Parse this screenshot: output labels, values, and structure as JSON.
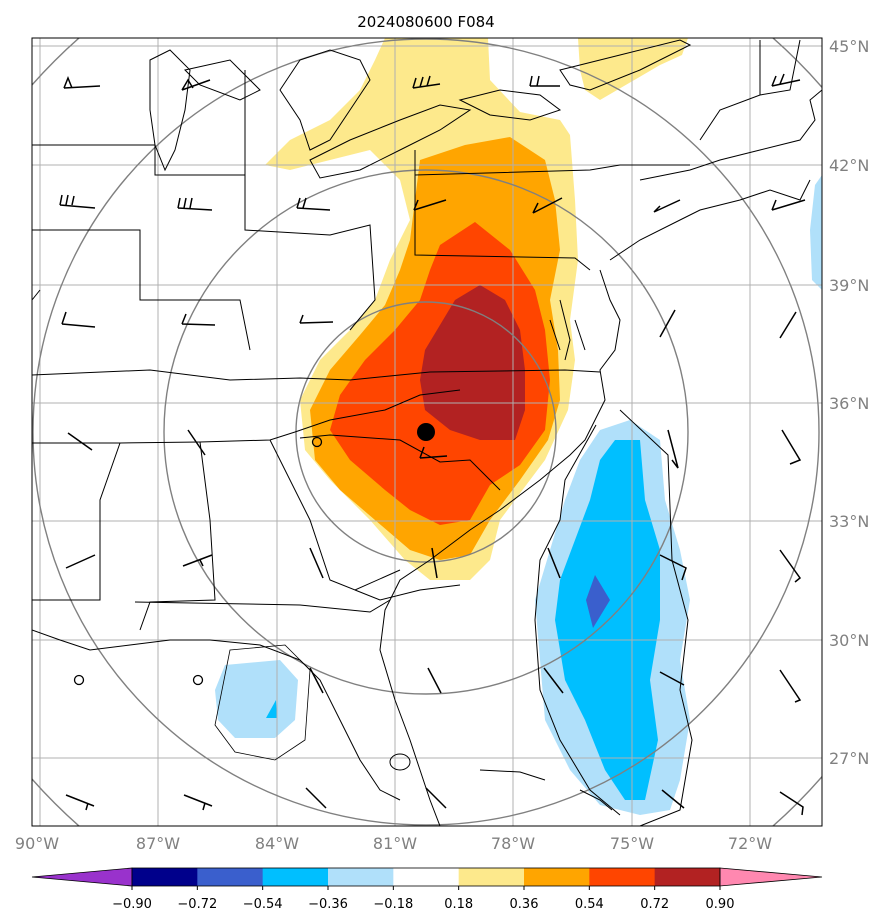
{
  "title": "2024080600 F084",
  "latitude_labels": [
    "45°N",
    "42°N",
    "39°N",
    "36°N",
    "33°N",
    "30°N",
    "27°N"
  ],
  "longitude_labels": [
    "90°W",
    "87°W",
    "84°W",
    "81°W",
    "78°W",
    "75°W",
    "72°W"
  ],
  "colorbar": {
    "tick_labels": [
      "−0.90",
      "−0.72",
      "−0.54",
      "−0.36",
      "−0.18",
      "0.18",
      "0.36",
      "0.54",
      "0.72",
      "0.90"
    ],
    "colors": [
      "#9932cc",
      "#00008b",
      "#3a5fcd",
      "#00bfff",
      "#b0e0fa",
      "#ffffff",
      "#fde98c",
      "#ffa500",
      "#ff4500",
      "#b22222",
      "#ff88b0"
    ]
  },
  "fill_colors": {
    "pos_018": "#fde98c",
    "pos_036": "#ffa500",
    "pos_054": "#ff4500",
    "pos_072": "#b22222",
    "neg_018": "#b0e0fa",
    "neg_036": "#00bfff",
    "neg_054": "#3a5fcd"
  }
}
